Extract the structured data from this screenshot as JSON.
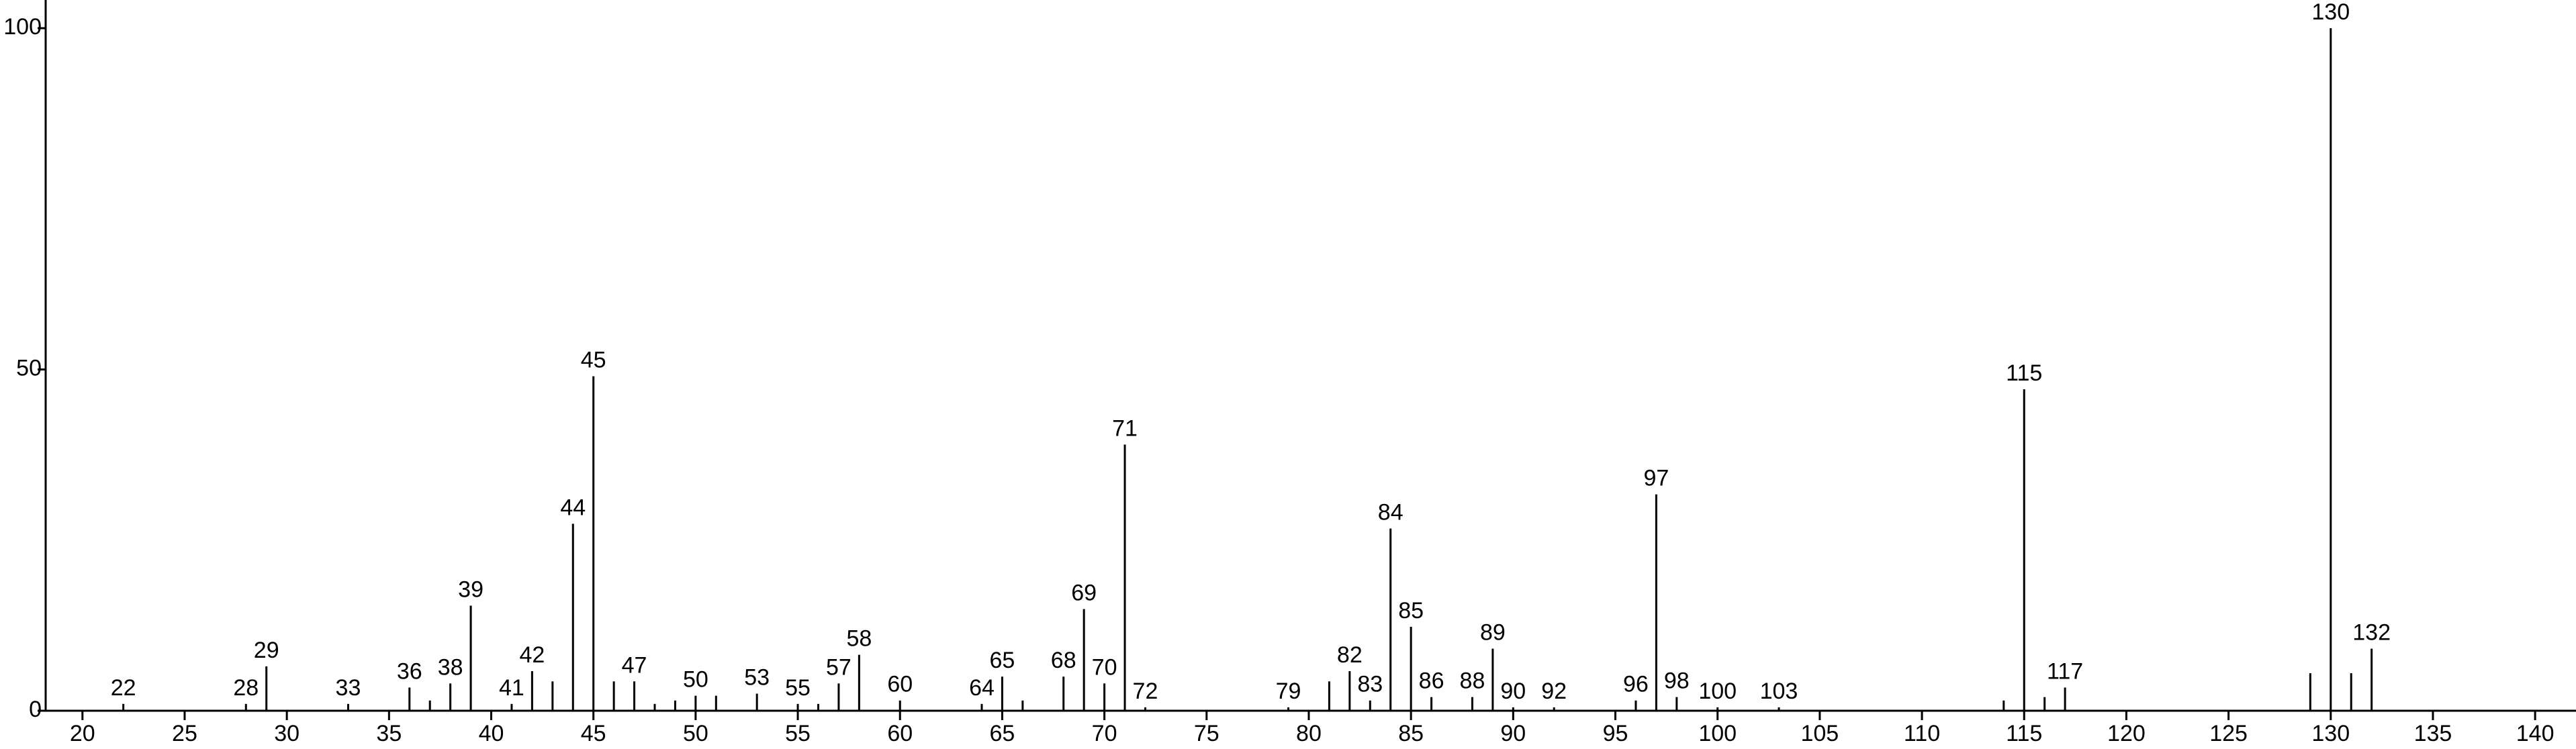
{
  "chart_data": {
    "type": "bar",
    "color": "#000000",
    "x": [
      22,
      28,
      29,
      33,
      36,
      37,
      38,
      39,
      41,
      42,
      43,
      44,
      45,
      46,
      47,
      48,
      49,
      50,
      51,
      53,
      55,
      56,
      57,
      58,
      60,
      64,
      65,
      66,
      68,
      69,
      70,
      71,
      72,
      79,
      81,
      82,
      83,
      84,
      85,
      86,
      88,
      89,
      90,
      92,
      96,
      97,
      98,
      100,
      103,
      114,
      115,
      116,
      117,
      129,
      130,
      131,
      132
    ],
    "values": [
      1,
      1,
      6.5,
      1,
      3.4,
      1.5,
      4,
      15.4,
      1,
      5.8,
      4.3,
      27.4,
      49,
      4.3,
      4.3,
      1,
      1.5,
      2.2,
      2.2,
      2.5,
      1,
      1,
      4,
      8.2,
      1.5,
      1,
      5,
      1.5,
      5,
      14.9,
      4,
      39,
      0.5,
      0.5,
      4.3,
      5.8,
      1.5,
      26.7,
      12.3,
      2,
      2,
      9.1,
      0.5,
      0.5,
      1.5,
      31.7,
      2,
      0.5,
      0.5,
      1.5,
      47.1,
      2,
      3.4,
      5.5,
      100,
      5.5,
      9.1
    ],
    "annotations": [
      22,
      28,
      29,
      33,
      36,
      38,
      39,
      41,
      42,
      44,
      45,
      47,
      50,
      53,
      55,
      57,
      58,
      60,
      64,
      65,
      68,
      69,
      70,
      71,
      72,
      79,
      82,
      83,
      84,
      85,
      86,
      88,
      89,
      90,
      92,
      96,
      97,
      98,
      100,
      103,
      115,
      117,
      130,
      132
    ],
    "xlim": [
      18.2,
      142
    ],
    "ylim": [
      0,
      100
    ],
    "xticks": [
      20,
      25,
      30,
      35,
      40,
      45,
      50,
      55,
      60,
      65,
      70,
      75,
      80,
      85,
      90,
      95,
      100,
      105,
      110,
      115,
      120,
      125,
      130,
      135,
      140
    ],
    "yticks": [
      0,
      50,
      100
    ]
  }
}
